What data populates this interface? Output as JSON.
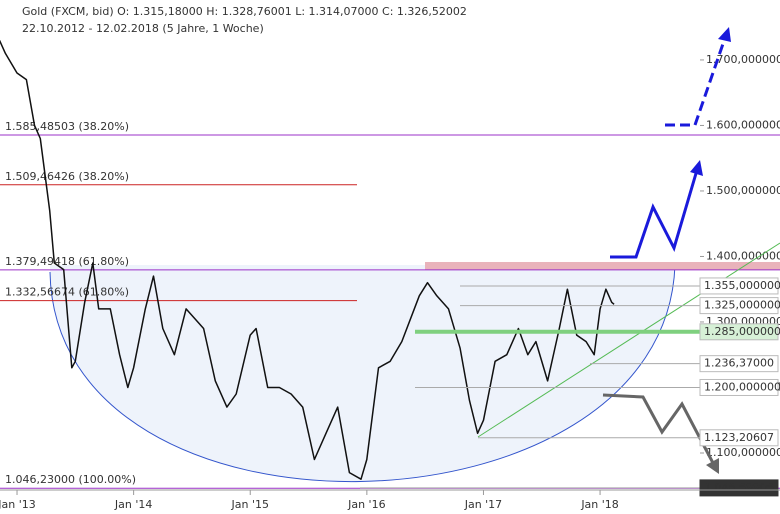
{
  "chart_data": {
    "type": "line",
    "title": "Gold (FXCM, bid)   O: 1.315,18000   H: 1.328,76001   L: 1.314,07000   C: 1.326,52002",
    "subtitle": "22.10.2012 - 12.02.2018   (5 Jahre, 1 Woche)",
    "x": [
      2012.85,
      2012.9,
      2013.0,
      2013.08,
      2013.15,
      2013.2,
      2013.28,
      2013.32,
      2013.4,
      2013.47,
      2013.5,
      2013.58,
      2013.65,
      2013.7,
      2013.8,
      2013.88,
      2013.95,
      2014.0,
      2014.1,
      2014.17,
      2014.25,
      2014.35,
      2014.45,
      2014.5,
      2014.6,
      2014.7,
      2014.8,
      2014.88,
      2015.0,
      2015.05,
      2015.15,
      2015.25,
      2015.35,
      2015.45,
      2015.55,
      2015.65,
      2015.75,
      2015.85,
      2015.95,
      2016.0,
      2016.1,
      2016.2,
      2016.3,
      2016.45,
      2016.52,
      2016.6,
      2016.7,
      2016.8,
      2016.88,
      2016.95,
      2017.0,
      2017.1,
      2017.2,
      2017.3,
      2017.38,
      2017.45,
      2017.55,
      2017.65,
      2017.72,
      2017.8,
      2017.88,
      2017.95,
      2018.0,
      2018.05,
      2018.1,
      2018.12
    ],
    "series": [
      {
        "name": "Gold (FXCM, bid)",
        "color": "#111111",
        "values": [
          1730,
          1710,
          1680,
          1670,
          1600,
          1580,
          1470,
          1390,
          1380,
          1230,
          1240,
          1330,
          1390,
          1320,
          1320,
          1250,
          1200,
          1230,
          1320,
          1370,
          1290,
          1250,
          1320,
          1310,
          1290,
          1210,
          1170,
          1190,
          1280,
          1290,
          1200,
          1200,
          1190,
          1170,
          1090,
          1130,
          1170,
          1070,
          1060,
          1090,
          1230,
          1240,
          1270,
          1340,
          1360,
          1340,
          1320,
          1260,
          1180,
          1130,
          1150,
          1240,
          1250,
          1290,
          1250,
          1270,
          1210,
          1290,
          1350,
          1280,
          1270,
          1250,
          1320,
          1350,
          1330,
          1327
        ]
      }
    ],
    "xlim": [
      2012.854,
      2018.857
    ],
    "xticks": [
      {
        "value": 2013,
        "label": "Jan '13"
      },
      {
        "value": 2014,
        "label": "Jan '14"
      },
      {
        "value": 2015,
        "label": "Jan '15"
      },
      {
        "value": 2016,
        "label": "Jan '16"
      },
      {
        "value": 2017,
        "label": "Jan '17"
      },
      {
        "value": 2018,
        "label": "Jan '18"
      }
    ],
    "ylim": [
      1043.5,
      1791.5
    ],
    "yticks": [
      {
        "value": 1100,
        "label": "1.100,000000"
      },
      {
        "value": 1200,
        "label": "1.200,000000"
      },
      {
        "value": 1300,
        "label": "1.300,000000"
      },
      {
        "value": 1400,
        "label": "1.400,000000"
      },
      {
        "value": 1500,
        "label": "1.500,000000"
      },
      {
        "value": 1600,
        "label": "1.600,000000"
      },
      {
        "value": 1700,
        "label": "1.700,000000"
      }
    ],
    "levels": [
      {
        "value": 1585.48503,
        "label": "1.585,48503 (38.20%)",
        "color": "#9b30c8"
      },
      {
        "value": 1509.46426,
        "label": "1.509,46426 (38.20%)",
        "color": "#cc2222"
      },
      {
        "value": 1379.49418,
        "label": "1.379,49418 (61.80%)",
        "color": "#9b30c8"
      },
      {
        "value": 1332.56674,
        "label": "1.332,56674 (61.80%)",
        "color": "#cc2222"
      },
      {
        "value": 1046.23,
        "label": "1.046,23000 (100.00%)",
        "color": "#9b30c8"
      }
    ],
    "price_marks": [
      {
        "value": 1355,
        "label": "1.355,000000"
      },
      {
        "value": 1325,
        "label": "1.325,000000"
      },
      {
        "value": 1285,
        "label": "1.285,000000"
      },
      {
        "value": 1236.37,
        "label": "1.236,37000"
      },
      {
        "value": 1200,
        "label": "1.200,000000"
      },
      {
        "value": 1123.20607,
        "label": "1.123,20607"
      },
      {
        "value": 1046.69906,
        "label": "1.046,69906"
      }
    ]
  }
}
